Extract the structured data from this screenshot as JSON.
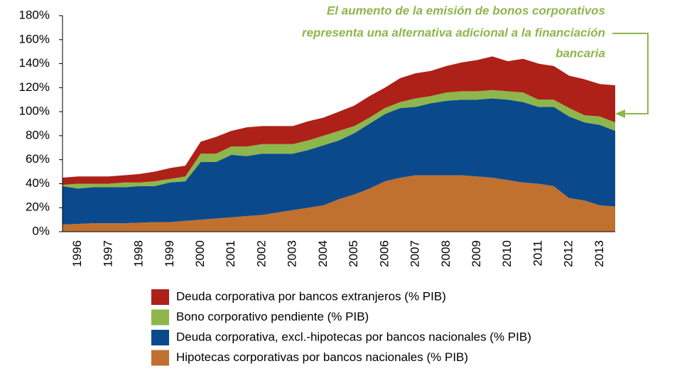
{
  "chart_data": {
    "type": "stacked_area",
    "annotation": [
      "El aumento de la emisión de bonos corporativos",
      "representa una alternativa adicional a la financiación",
      "bancaria"
    ],
    "categories": [
      null,
      "1996",
      null,
      "1997",
      null,
      "1998",
      null,
      "1999",
      null,
      "2000",
      null,
      "2001",
      null,
      "2002",
      null,
      "2003",
      null,
      "2004",
      null,
      "2005",
      null,
      "2006",
      null,
      "2007",
      null,
      "2008",
      null,
      "2009",
      null,
      "2010",
      null,
      "2011",
      null,
      "2012",
      null,
      "2013",
      null
    ],
    "series": [
      {
        "name": "Hipotecas corporativas por bancos nacionales (% PIB)",
        "color": "#c0702f",
        "values": [
          6,
          6.5,
          7,
          7,
          7,
          7.5,
          8,
          8,
          9,
          10,
          11,
          12,
          13,
          14,
          16,
          18,
          20,
          22,
          27,
          31,
          36,
          42,
          45,
          47,
          47,
          47,
          47,
          46,
          45,
          43,
          41,
          40,
          38,
          28,
          26,
          22,
          21
        ]
      },
      {
        "name": "Deuda corporativa, excl.-hipotecas por bancos nacionales (% PIB)",
        "color": "#0a4a8c",
        "values": [
          32,
          29.5,
          30,
          30,
          30,
          30.5,
          30,
          33,
          33,
          48,
          47,
          52,
          50,
          51,
          49,
          47,
          48,
          50,
          49,
          51,
          54,
          56,
          58,
          57,
          60,
          62,
          63,
          64,
          66,
          67,
          67,
          64,
          66,
          68,
          65,
          67,
          63
        ]
      },
      {
        "name": "Bono corporativo pendiente (% PIB)",
        "color": "#8db64c",
        "values": [
          1,
          4,
          3,
          3,
          4,
          3,
          4,
          3,
          4,
          7,
          7,
          7,
          8,
          8,
          8,
          8,
          8,
          8,
          8,
          6,
          5,
          5,
          5,
          7,
          6,
          7,
          7,
          7,
          7,
          7,
          8,
          6,
          6,
          7,
          6,
          7,
          7
        ]
      },
      {
        "name": "Deuda corporativa por bancos extranjeros (% PIB)",
        "color": "#ad2118",
        "values": [
          6,
          6,
          6,
          6,
          6,
          7,
          8,
          9,
          9,
          10,
          14,
          13,
          16,
          15,
          15,
          15,
          16,
          15,
          16,
          17,
          18,
          17,
          20,
          21,
          21,
          22,
          24,
          26,
          28,
          25,
          28,
          30,
          28,
          27,
          30,
          27,
          31
        ]
      }
    ],
    "ylim": [
      0,
      180
    ],
    "yticks": [
      {
        "value": 0,
        "label": "0%"
      },
      {
        "value": 20,
        "label": "20%"
      },
      {
        "value": 40,
        "label": "40%"
      },
      {
        "value": 60,
        "label": "60%"
      },
      {
        "value": 80,
        "label": "80%"
      },
      {
        "value": 100,
        "label": "100%"
      },
      {
        "value": 120,
        "label": "120%"
      },
      {
        "value": 140,
        "label": "140%"
      },
      {
        "value": 160,
        "label": "160%"
      },
      {
        "value": 180,
        "label": "180%"
      }
    ],
    "grid": false,
    "legend": "bottom"
  }
}
